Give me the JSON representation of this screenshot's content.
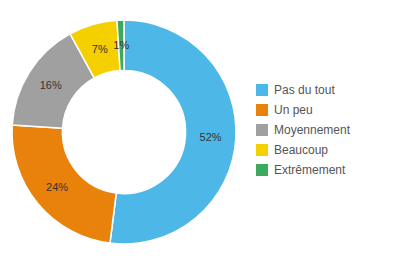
{
  "chart_data": {
    "type": "donut",
    "categories": [
      "Pas du tout",
      "Un peu",
      "Moyennement",
      "Beaucoup",
      "Extrêmement"
    ],
    "values": [
      52,
      24,
      16,
      7,
      1
    ],
    "value_labels": [
      "52%",
      "24%",
      "16%",
      "7%",
      "1%"
    ],
    "colors": [
      "#4DB8E8",
      "#E8820A",
      "#A0A0A0",
      "#F5D000",
      "#3BAA5C"
    ],
    "data_labels": true,
    "legend": "right"
  }
}
